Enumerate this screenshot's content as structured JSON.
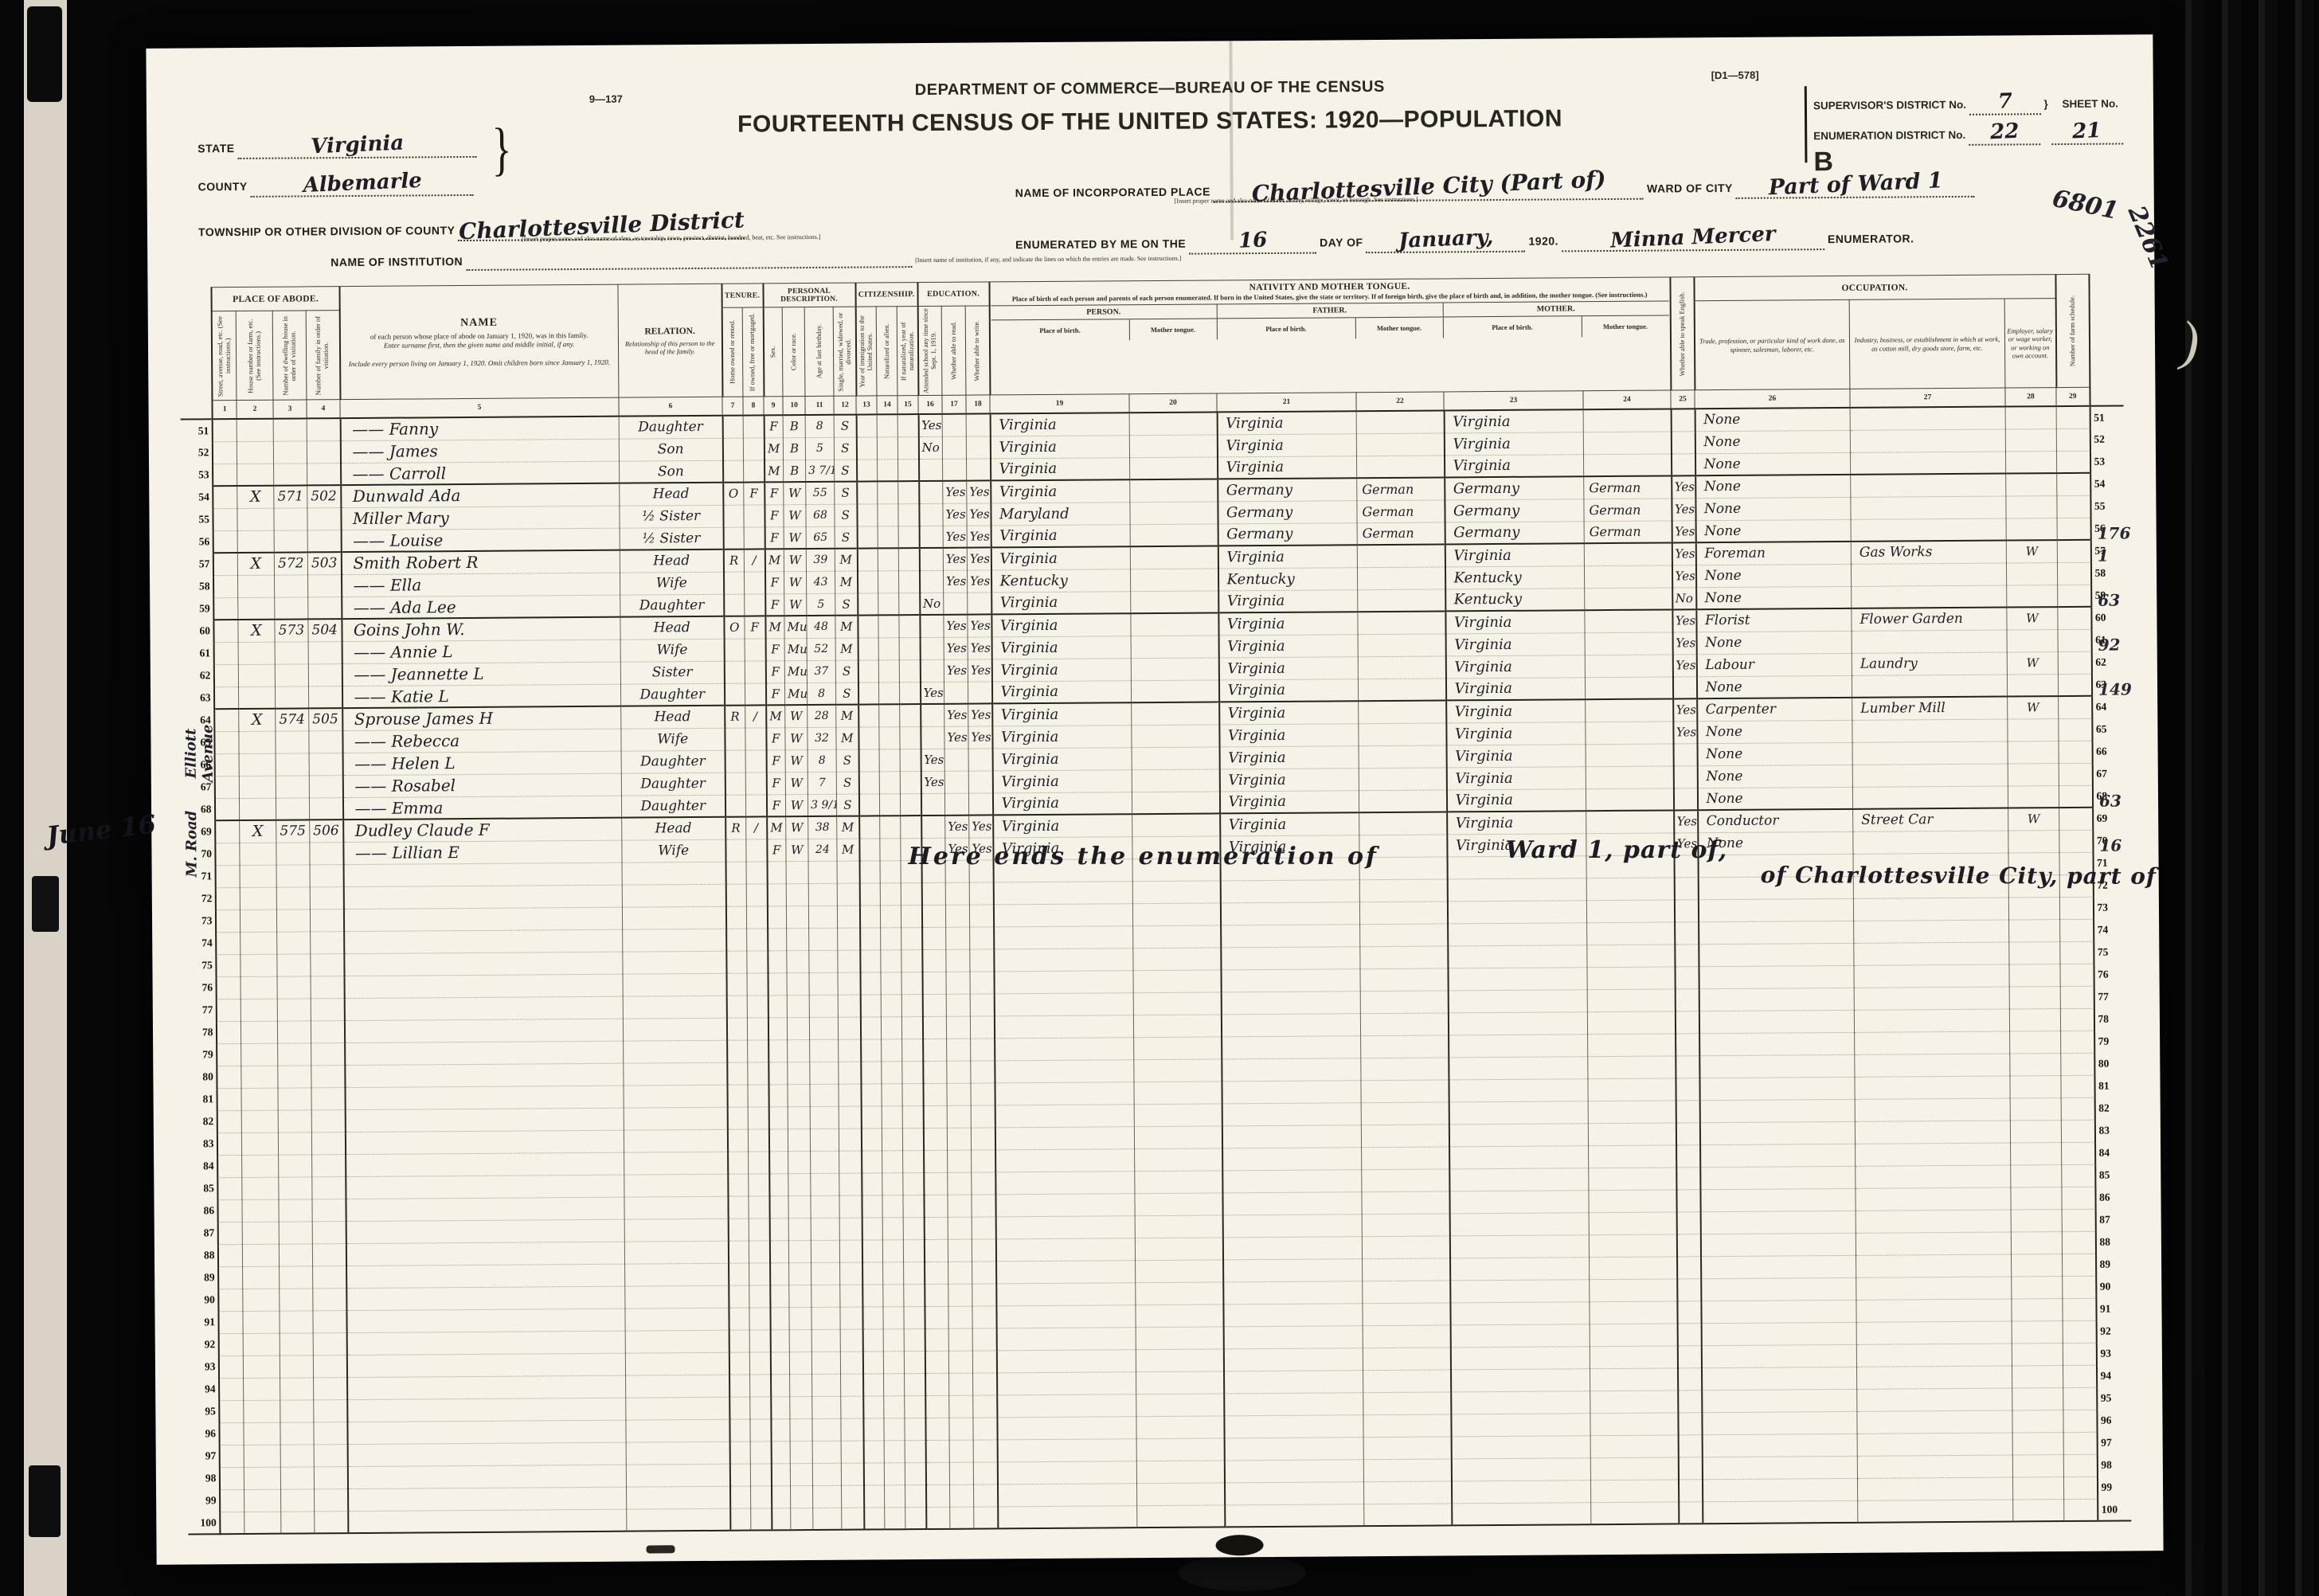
{
  "form": {
    "form_number": "9—137",
    "plate_number": "[D1—578]",
    "department": "DEPARTMENT OF COMMERCE—BUREAU OF THE CENSUS",
    "title": "FOURTEENTH CENSUS OF THE UNITED STATES: 1920—POPULATION",
    "state_label": "STATE",
    "state_value": "Virginia",
    "county_label": "COUNTY",
    "county_value": "Albemarle",
    "township_label": "TOWNSHIP OR OTHER DIVISION OF COUNTY",
    "township_value": "Charlottesville District",
    "township_note": "[Insert proper name and also name of class, as township, town, precinct, district, hundred, beat, etc.  See instructions.]",
    "institution_label": "NAME OF INSTITUTION",
    "institution_note": "[Insert name of institution, if any, and indicate the lines on which the entries are made.  See instructions.]",
    "incorporated_label": "NAME OF INCORPORATED PLACE",
    "incorporated_value": "Charlottesville City (Part of)",
    "incorporated_note": "[Insert proper name and also name of class, as city, village, town, or borough.  See instructions.]",
    "ward_label": "WARD OF CITY",
    "ward_value": "Part of Ward 1",
    "supervisor_district_label": "SUPERVISOR'S DISTRICT No.",
    "supervisor_district_value": "7",
    "enumeration_district_label": "ENUMERATION DISTRICT No.",
    "enumeration_district_value": "22",
    "sheet_label": "SHEET No.",
    "sheet_value": "21",
    "sheet_letter": "B",
    "enumerated_label": "ENUMERATED BY ME ON THE",
    "enumerated_day": "16",
    "day_of_label": "DAY OF",
    "enumerated_month": "January,",
    "enumerated_year": "1920.",
    "enumerator_value": "Minna Mercer",
    "enumerator_label": "ENUMERATOR."
  },
  "table": {
    "groups": {
      "place_of_abode": "PLACE OF ABODE.",
      "tenure": "TENURE.",
      "personal": "PERSONAL DESCRIPTION.",
      "citizenship": "CITIZENSHIP.",
      "education": "EDUCATION.",
      "nativity": "NATIVITY AND MOTHER TONGUE.",
      "nativity_note": "Place of birth of each person and parents of each person enumerated.  If born in the United States, give the state or territory.  If of foreign birth, give the place of birth and, in addition, the mother tongue.  (See instructions.)",
      "person": "PERSON.",
      "father": "FATHER.",
      "mother": "MOTHER.",
      "occupation": "OCCUPATION."
    },
    "columns": {
      "c1": "Street, avenue, road, etc.  (See instructions.)",
      "c2": "House number or farm, etc.  (See instructions.)",
      "c3": "Number of dwelling house in order of visitation.",
      "c4": "Number of family in order of visitation.",
      "c5_title": "NAME",
      "c5_line1": "of each person whose place of abode on January 1, 1920, was in this family.",
      "c5_line2": "Enter surname first, then the given name and middle initial, if any.",
      "c5_line3": "Include every person living on January 1, 1920.  Omit children born since January 1, 1920.",
      "c6_title": "RELATION.",
      "c6_sub": "Relationship of this person to the head of the family.",
      "c7": "Home owned or rented.",
      "c8": "If owned, free or mortgaged.",
      "c9": "Sex.",
      "c10": "Color or race.",
      "c11": "Age at last birthday.",
      "c12": "Single, married, widowed, or divorced.",
      "c13": "Year of immigration to the United States.",
      "c14": "Naturalized or alien.",
      "c15": "If naturalized, year of naturalization.",
      "c16": "Attended school any time since Sept. 1, 1919.",
      "c17": "Whether able to read.",
      "c18": "Whether able to write.",
      "c19": "Place of birth.",
      "c20": "Mother tongue.",
      "c21": "Place of birth.",
      "c22": "Mother tongue.",
      "c23": "Place of birth.",
      "c24": "Mother tongue.",
      "c25": "Whether able to speak English.",
      "c26": "Trade, profession, or particular kind of work done, as spinner, salesman, laborer, etc.",
      "c27": "Industry, business, or establishment in which at work, as cotton mill, dry goods store, farm, etc.",
      "c28": "Employer, salary or wage worker, or working on own account.",
      "c29": "Number of farm schedule.",
      "numbers": [
        "1",
        "2",
        "3",
        "4",
        "5",
        "6",
        "7",
        "8",
        "9",
        "10",
        "11",
        "12",
        "13",
        "14",
        "15",
        "16",
        "17",
        "18",
        "19",
        "20",
        "21",
        "22",
        "23",
        "24",
        "25",
        "26",
        "27",
        "28",
        "29"
      ]
    },
    "row_keys": [
      "h",
      "dw",
      "fm",
      "name",
      "rel",
      "c7",
      "c8",
      "sx",
      "cr",
      "ag",
      "ms",
      "c13",
      "c14",
      "c15",
      "s16",
      "s17",
      "s18",
      "p19",
      "p20",
      "p21",
      "p22",
      "p23",
      "p24",
      "c25",
      "c26",
      "c27",
      "c28",
      "c29"
    ],
    "rows": [
      {
        "ln": "51",
        "name": "—— Fanny",
        "rel": "Daughter",
        "sx": "F",
        "cr": "B",
        "ag": "8",
        "ms": "S",
        "s16": "Yes",
        "p19": "Virginia",
        "p21": "Virginia",
        "p23": "Virginia",
        "c26": "None"
      },
      {
        "ln": "52",
        "name": "—— James",
        "rel": "Son",
        "sx": "M",
        "cr": "B",
        "ag": "5",
        "ms": "S",
        "s16": "No",
        "p19": "Virginia",
        "p21": "Virginia",
        "p23": "Virginia",
        "c26": "None"
      },
      {
        "ln": "53",
        "name": "—— Carroll",
        "rel": "Son",
        "sx": "M",
        "cr": "B",
        "ag": "3 7/12",
        "ms": "S",
        "p19": "Virginia",
        "p21": "Virginia",
        "p23": "Virginia",
        "c26": "None"
      },
      {
        "ln": "54",
        "h": "X",
        "dw": "571",
        "fm": "502",
        "name": "Dunwald Ada",
        "rel": "Head",
        "c7": "O",
        "c8": "F",
        "sx": "F",
        "cr": "W",
        "ag": "55",
        "ms": "S",
        "s17": "Yes",
        "s18": "Yes",
        "p19": "Virginia",
        "p21": "Germany",
        "p22": "German",
        "p23": "Germany",
        "p24": "German",
        "c25": "Yes",
        "c26": "None"
      },
      {
        "ln": "55",
        "name": "Miller Mary",
        "rel": "½ Sister",
        "sx": "F",
        "cr": "W",
        "ag": "68",
        "ms": "S",
        "s17": "Yes",
        "s18": "Yes",
        "p19": "Maryland",
        "p21": "Germany",
        "p22": "German",
        "p23": "Germany",
        "p24": "German",
        "c25": "Yes",
        "c26": "None"
      },
      {
        "ln": "56",
        "name": "—— Louise",
        "rel": "½ Sister",
        "sx": "F",
        "cr": "W",
        "ag": "65",
        "ms": "S",
        "s17": "Yes",
        "s18": "Yes",
        "p19": "Virginia",
        "p21": "Germany",
        "p22": "German",
        "p23": "Germany",
        "p24": "German",
        "c25": "Yes",
        "c26": "None"
      },
      {
        "ln": "57",
        "h": "X",
        "dw": "572",
        "fm": "503",
        "name": "Smith Robert R",
        "rel": "Head",
        "c7": "R",
        "c8": "∕",
        "sx": "M",
        "cr": "W",
        "ag": "39",
        "ms": "M",
        "s17": "Yes",
        "s18": "Yes",
        "p19": "Virginia",
        "p21": "Virginia",
        "p23": "Virginia",
        "c25": "Yes",
        "c26": "Foreman",
        "c27": "Gas Works",
        "c28": "W"
      },
      {
        "ln": "58",
        "name": "—— Ella",
        "rel": "Wife",
        "sx": "F",
        "cr": "W",
        "ag": "43",
        "ms": "M",
        "s17": "Yes",
        "s18": "Yes",
        "p19": "Kentucky",
        "p21": "Kentucky",
        "p23": "Kentucky",
        "c25": "Yes",
        "c26": "None"
      },
      {
        "ln": "59",
        "name": "—— Ada Lee",
        "rel": "Daughter",
        "sx": "F",
        "cr": "W",
        "ag": "5",
        "ms": "S",
        "s16": "No",
        "p19": "Virginia",
        "p21": "Virginia",
        "p23": "Kentucky",
        "c25": "No",
        "c26": "None"
      },
      {
        "ln": "60",
        "h": "X",
        "dw": "573",
        "fm": "504",
        "name": "Goins John W.",
        "rel": "Head",
        "c7": "O",
        "c8": "F",
        "sx": "M",
        "cr": "Mu",
        "ag": "48",
        "ms": "M",
        "s17": "Yes",
        "s18": "Yes",
        "p19": "Virginia",
        "p21": "Virginia",
        "p23": "Virginia",
        "c25": "Yes",
        "c26": "Florist",
        "c27": "Flower Garden",
        "c28": "W"
      },
      {
        "ln": "61",
        "name": "—— Annie L",
        "rel": "Wife",
        "sx": "F",
        "cr": "Mu",
        "ag": "52",
        "ms": "M",
        "s17": "Yes",
        "s18": "Yes",
        "p19": "Virginia",
        "p21": "Virginia",
        "p23": "Virginia",
        "c25": "Yes",
        "c26": "None"
      },
      {
        "ln": "62",
        "name": "—— Jeannette L",
        "rel": "Sister",
        "sx": "F",
        "cr": "Mu",
        "ag": "37",
        "ms": "S",
        "s17": "Yes",
        "s18": "Yes",
        "p19": "Virginia",
        "p21": "Virginia",
        "p23": "Virginia",
        "c25": "Yes",
        "c26": "Labour",
        "c27": "Laundry",
        "c28": "W"
      },
      {
        "ln": "63",
        "name": "—— Katie L",
        "rel": "Daughter",
        "sx": "F",
        "cr": "Mu",
        "ag": "8",
        "ms": "S",
        "s16": "Yes",
        "p19": "Virginia",
        "p21": "Virginia",
        "p23": "Virginia",
        "c26": "None"
      },
      {
        "ln": "64",
        "h": "X",
        "dw": "574",
        "fm": "505",
        "name": "Sprouse James H",
        "rel": "Head",
        "c7": "R",
        "c8": "∕",
        "sx": "M",
        "cr": "W",
        "ag": "28",
        "ms": "M",
        "s17": "Yes",
        "s18": "Yes",
        "p19": "Virginia",
        "p21": "Virginia",
        "p23": "Virginia",
        "c25": "Yes",
        "c26": "Carpenter",
        "c27": "Lumber Mill",
        "c28": "W"
      },
      {
        "ln": "65",
        "name": "—— Rebecca",
        "rel": "Wife",
        "sx": "F",
        "cr": "W",
        "ag": "32",
        "ms": "M",
        "s17": "Yes",
        "s18": "Yes",
        "p19": "Virginia",
        "p21": "Virginia",
        "p23": "Virginia",
        "c25": "Yes",
        "c26": "None"
      },
      {
        "ln": "66",
        "name": "—— Helen L",
        "rel": "Daughter",
        "sx": "F",
        "cr": "W",
        "ag": "8",
        "ms": "S",
        "s16": "Yes",
        "p19": "Virginia",
        "p21": "Virginia",
        "p23": "Virginia",
        "c26": "None"
      },
      {
        "ln": "67",
        "name": "—— Rosabel",
        "rel": "Daughter",
        "sx": "F",
        "cr": "W",
        "ag": "7",
        "ms": "S",
        "s16": "Yes",
        "p19": "Virginia",
        "p21": "Virginia",
        "p23": "Virginia",
        "c26": "None"
      },
      {
        "ln": "68",
        "name": "—— Emma",
        "rel": "Daughter",
        "sx": "F",
        "cr": "W",
        "ag": "3 9/12",
        "ms": "S",
        "p19": "Virginia",
        "p21": "Virginia",
        "p23": "Virginia",
        "c26": "None"
      },
      {
        "ln": "69",
        "h": "X",
        "dw": "575",
        "fm": "506",
        "name": "Dudley Claude F",
        "rel": "Head",
        "c7": "R",
        "c8": "∕",
        "sx": "M",
        "cr": "W",
        "ag": "38",
        "ms": "M",
        "s17": "Yes",
        "s18": "Yes",
        "p19": "Virginia",
        "p21": "Virginia",
        "p23": "Virginia",
        "c25": "Yes",
        "c26": "Conductor",
        "c27": "Street Car",
        "c28": "W"
      },
      {
        "ln": "70",
        "name": "—— Lillian E",
        "rel": "Wife",
        "sx": "F",
        "cr": "W",
        "ag": "24",
        "ms": "M",
        "s17": "Yes",
        "s18": "Yes",
        "p19": "Virginia",
        "p21": "Virginia",
        "p23": "Virginia",
        "c25": "Yes",
        "c26": "None"
      },
      {
        "ln": "71"
      },
      {
        "ln": "72"
      },
      {
        "ln": "73"
      },
      {
        "ln": "74"
      },
      {
        "ln": "75"
      },
      {
        "ln": "76"
      },
      {
        "ln": "77"
      },
      {
        "ln": "78"
      },
      {
        "ln": "79"
      },
      {
        "ln": "80"
      },
      {
        "ln": "81"
      },
      {
        "ln": "82"
      },
      {
        "ln": "83"
      },
      {
        "ln": "84"
      },
      {
        "ln": "85"
      },
      {
        "ln": "86"
      },
      {
        "ln": "87"
      },
      {
        "ln": "88"
      },
      {
        "ln": "89"
      },
      {
        "ln": "90"
      },
      {
        "ln": "91"
      },
      {
        "ln": "92"
      },
      {
        "ln": "93"
      },
      {
        "ln": "94"
      },
      {
        "ln": "95"
      },
      {
        "ln": "96"
      },
      {
        "ln": "97"
      },
      {
        "ln": "98"
      },
      {
        "ln": "99"
      },
      {
        "ln": "100"
      }
    ]
  },
  "annotations": {
    "street_1": "Elliott Avenue",
    "street_2": "M. Road",
    "left_margin": "June 16",
    "end_note_1": "Here ends the enumeration of",
    "end_note_2": "Ward 1, part of,",
    "end_note_3": "of Charlottesville City, part of",
    "scribble_top_1": "6801",
    "scribble_top_2": "2261",
    "right_notes": [
      {
        "line": 57,
        "text": "176"
      },
      {
        "line": 58,
        "text": "1"
      },
      {
        "line": 60,
        "text": "63"
      },
      {
        "line": 62,
        "text": "92"
      },
      {
        "line": 64,
        "text": "149"
      },
      {
        "line": 69,
        "text": "63"
      },
      {
        "line": 71,
        "text": "16"
      }
    ]
  }
}
